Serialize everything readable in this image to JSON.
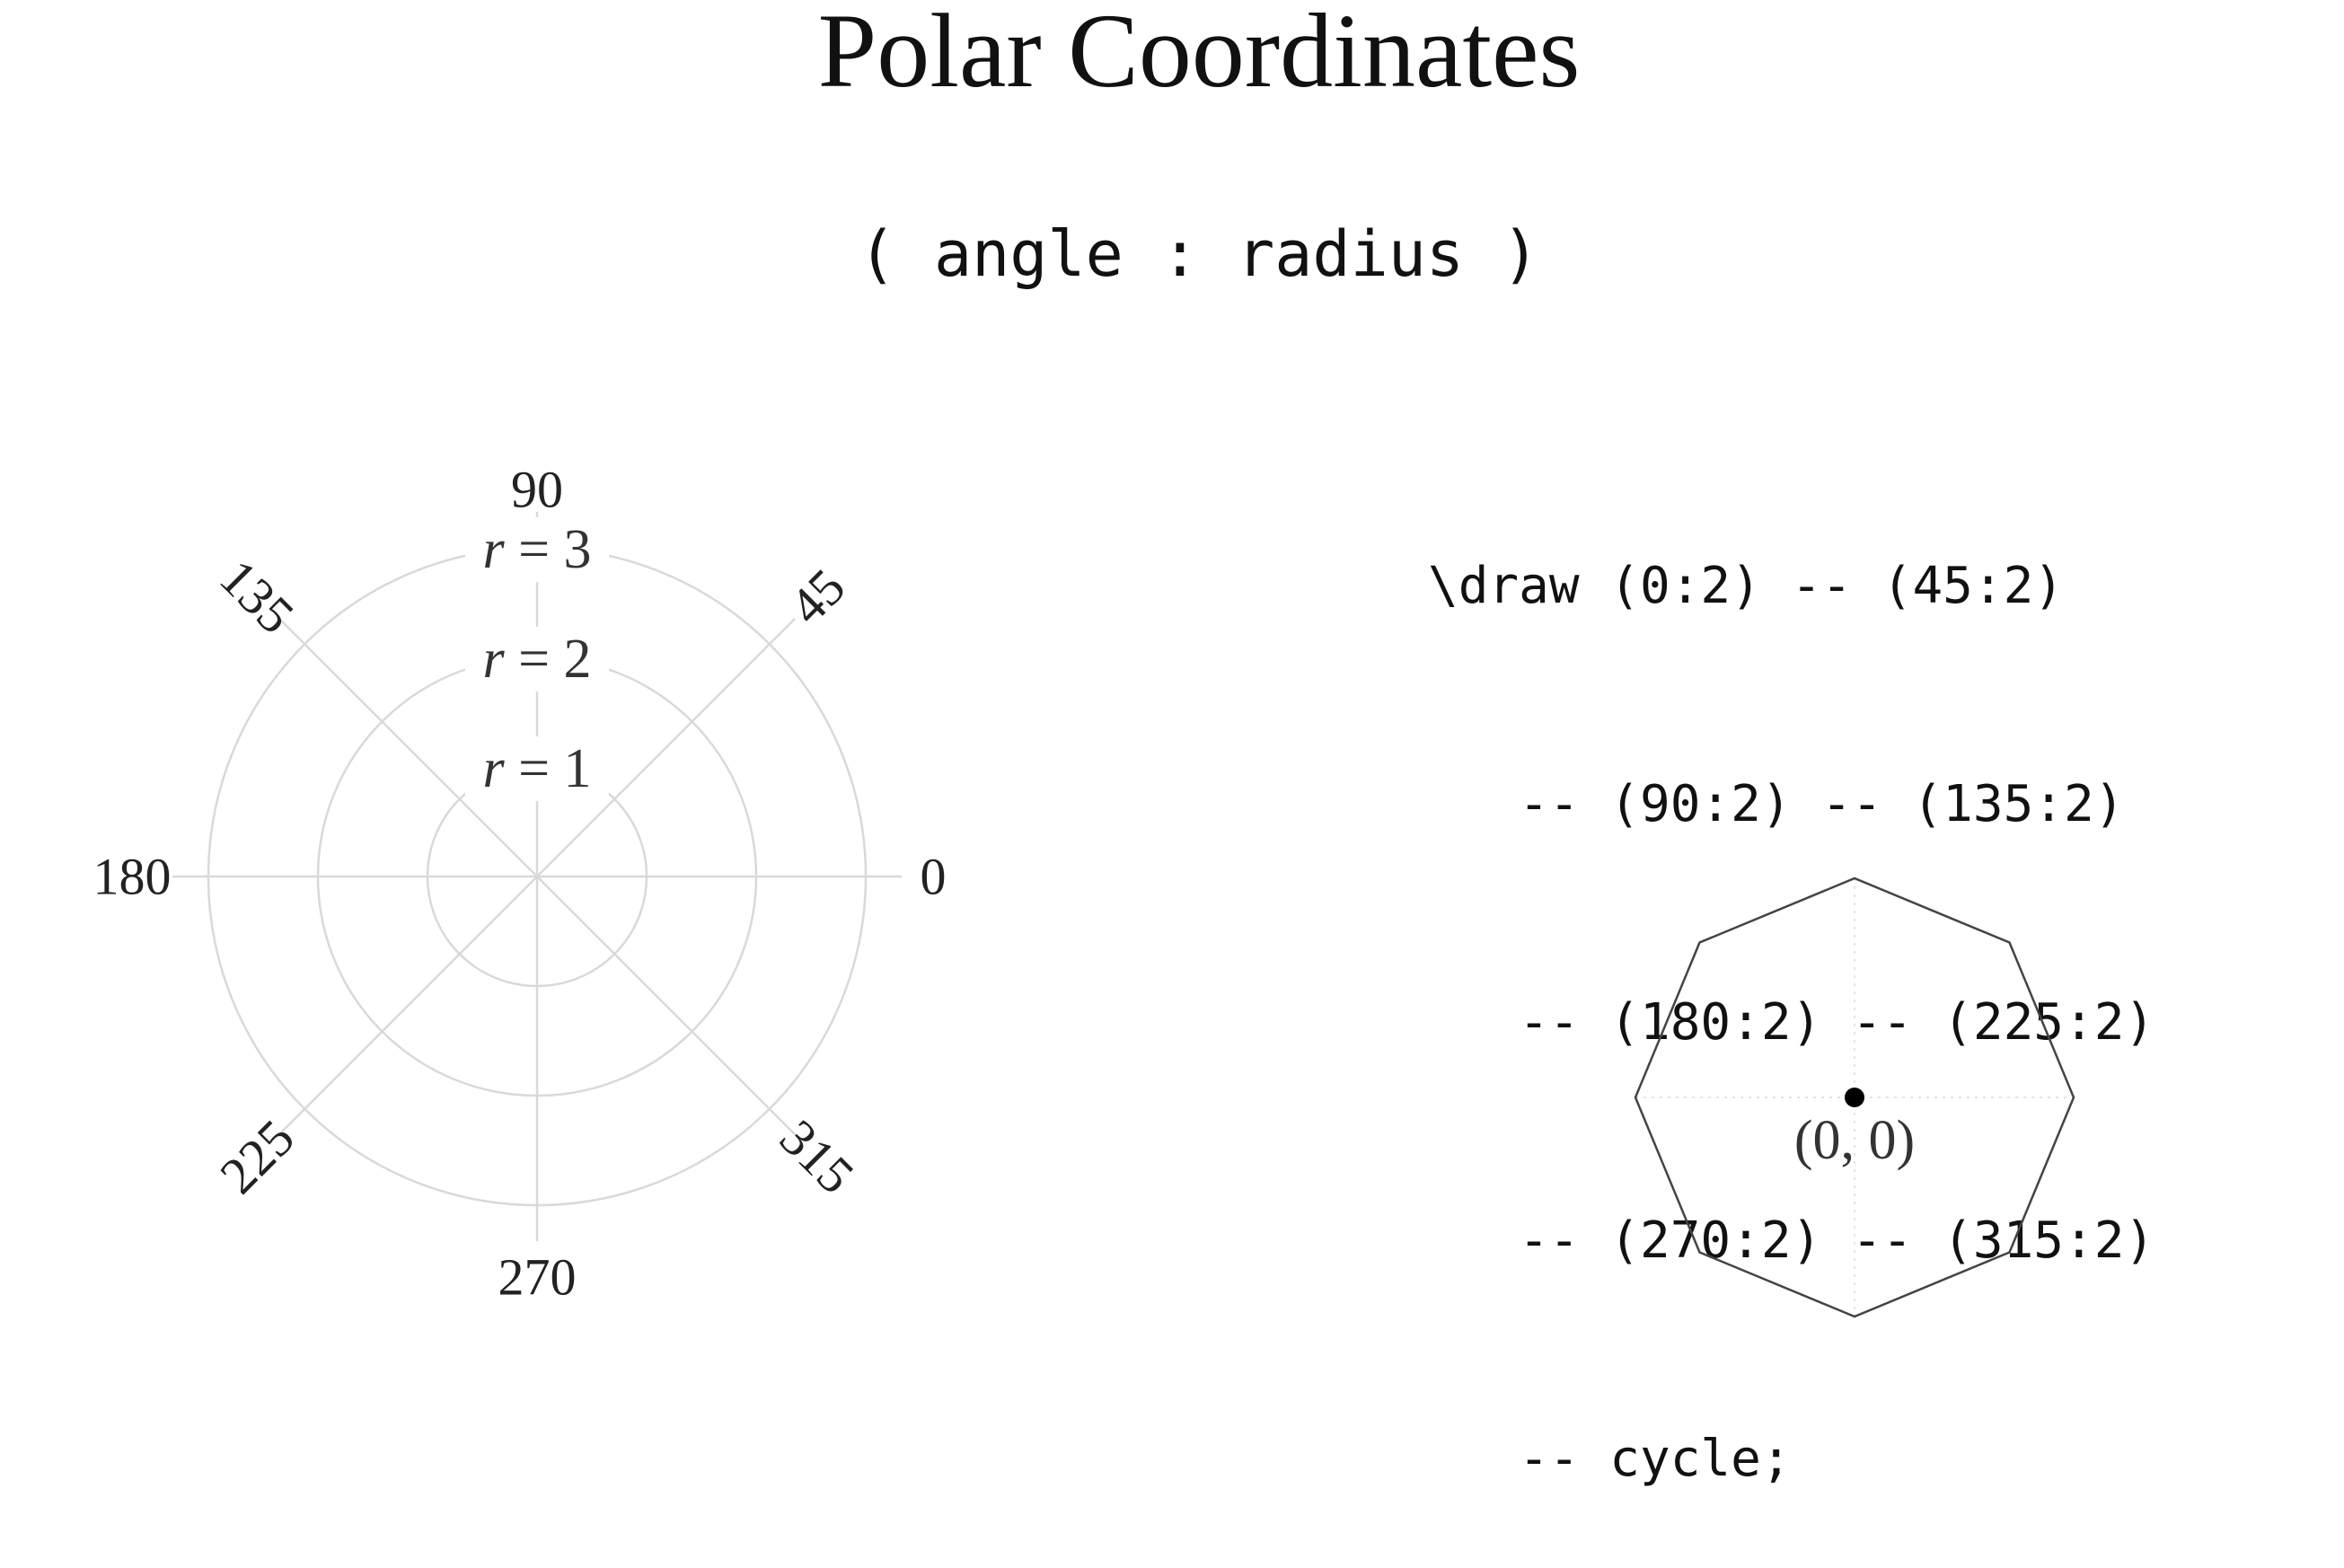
{
  "title": "Polar Coordinates",
  "subtitle": "( angle : radius )",
  "polar_grid": {
    "angle_labels": [
      {
        "angle": 0,
        "label": "0"
      },
      {
        "angle": 45,
        "label": "45"
      },
      {
        "angle": 90,
        "label": "90"
      },
      {
        "angle": 135,
        "label": "135"
      },
      {
        "angle": 180,
        "label": "180"
      },
      {
        "angle": 225,
        "label": "225"
      },
      {
        "angle": 270,
        "label": "270"
      },
      {
        "angle": 315,
        "label": "315"
      }
    ],
    "radii": [
      {
        "r": 1,
        "var": "r",
        "eq": " = ",
        "value": "1"
      },
      {
        "r": 2,
        "var": "r",
        "eq": " = ",
        "value": "2"
      },
      {
        "r": 3,
        "var": "r",
        "eq": " = ",
        "value": "3"
      }
    ]
  },
  "code_lines": [
    "\\draw (0:2) -- (45:2)",
    "   -- (90:2) -- (135:2)",
    "   -- (180:2) -- (225:2)",
    "   -- (270:2) -- (315:2)",
    "   -- cycle;"
  ],
  "octagon": {
    "vertices": [
      {
        "angle": 0,
        "radius": 2
      },
      {
        "angle": 45,
        "radius": 2
      },
      {
        "angle": 90,
        "radius": 2
      },
      {
        "angle": 135,
        "radius": 2
      },
      {
        "angle": 180,
        "radius": 2
      },
      {
        "angle": 225,
        "radius": 2
      },
      {
        "angle": 270,
        "radius": 2
      },
      {
        "angle": 315,
        "radius": 2
      }
    ],
    "origin_label": "(0, 0)"
  },
  "colors": {
    "grid": "#d9d9d9",
    "text": "#111111",
    "octagon_stroke": "#444444",
    "origin_dot": "#000000"
  }
}
